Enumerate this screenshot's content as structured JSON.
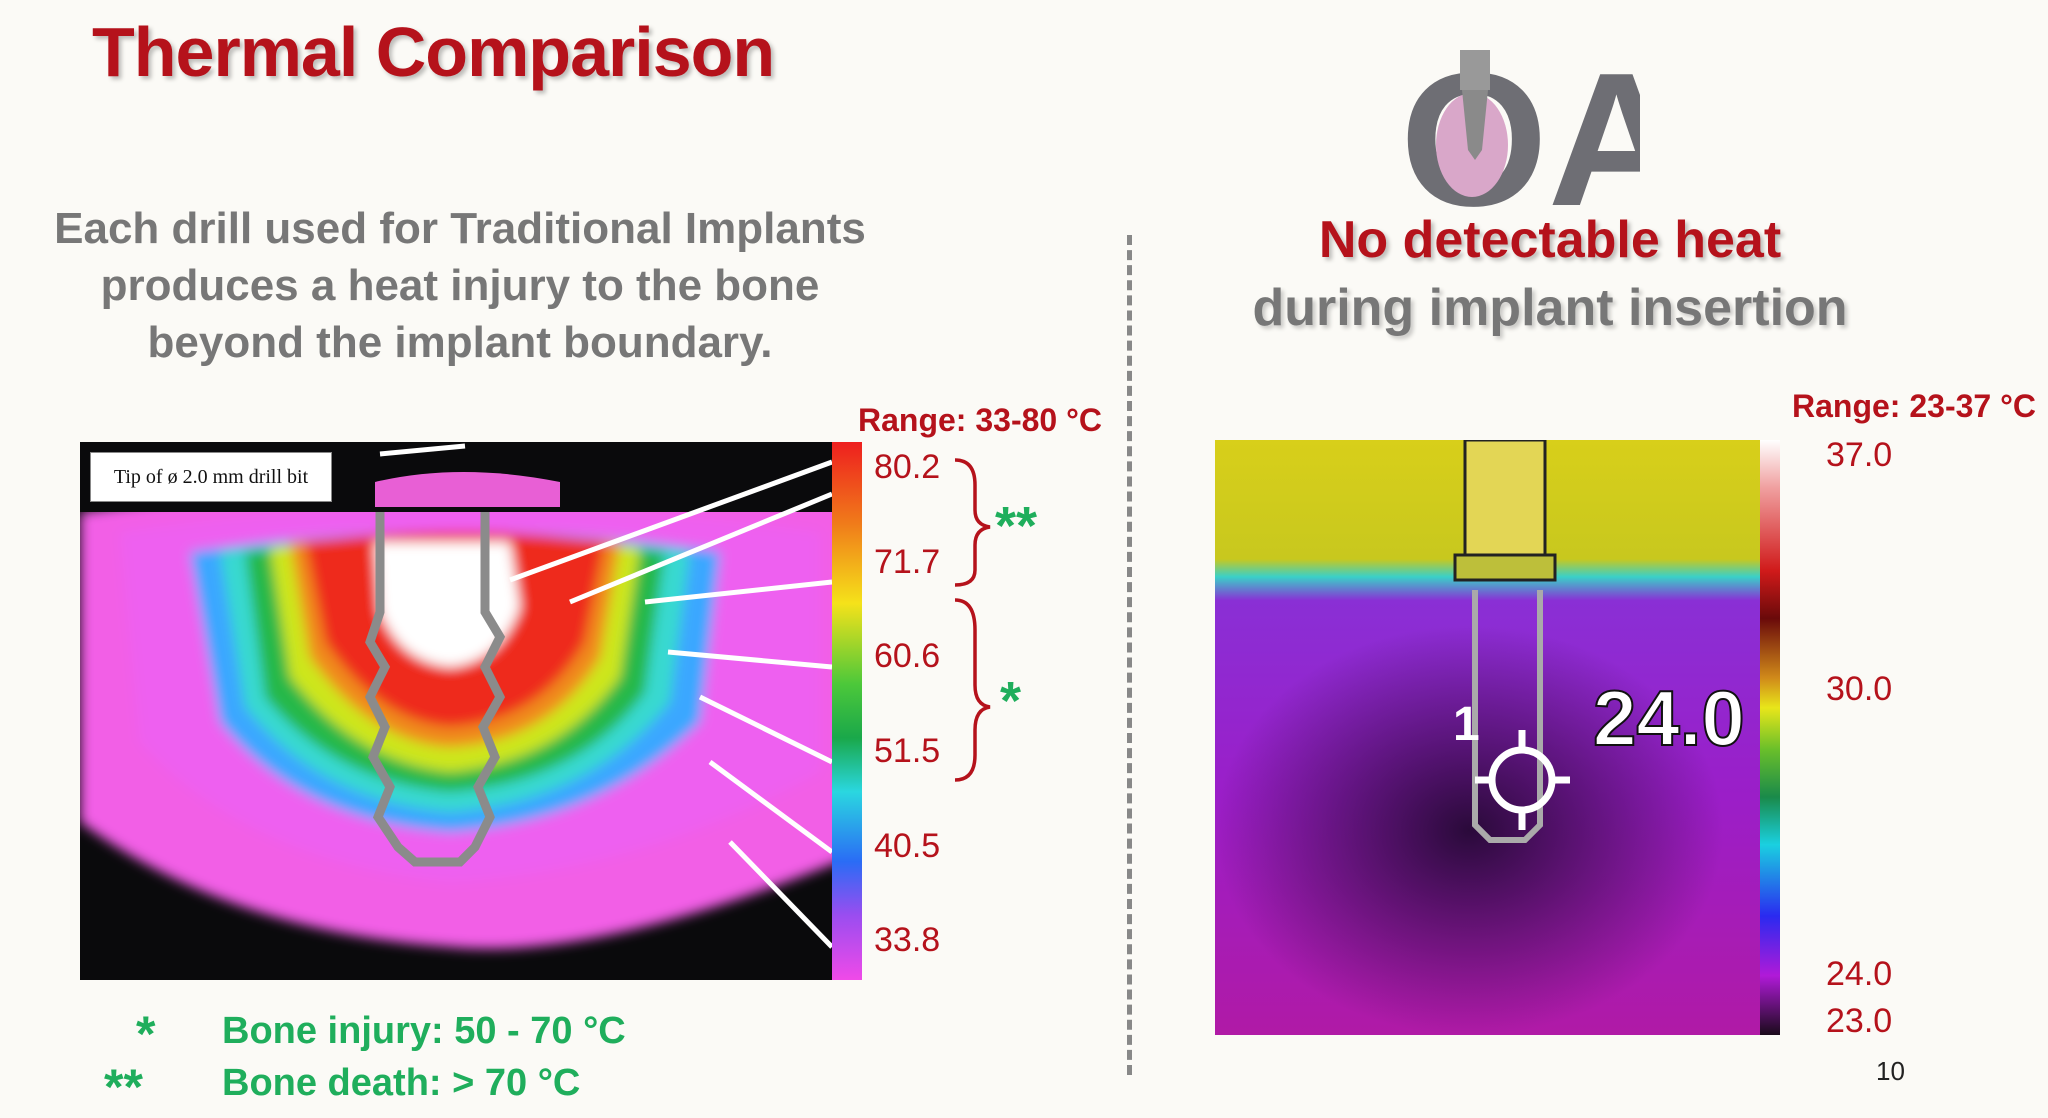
{
  "slide": {
    "title": "Thermal Comparison",
    "page_number": "10"
  },
  "left": {
    "description_lines": [
      "Each drill used for Traditional Implants",
      "produces a heat injury to the bone",
      "beyond the implant boundary."
    ],
    "callout": "Tip of ø 2.0 mm drill bit",
    "range_label": "Range: 33-80 °C",
    "scale_labels": [
      "80.2",
      "71.7",
      "60.6",
      "51.5",
      "40.5",
      "33.8"
    ],
    "brace_markers": [
      "**",
      "*"
    ],
    "legend": [
      {
        "marker": "*",
        "text": "Bone injury: 50 - 70 °C"
      },
      {
        "marker": "**",
        "text": "Bone death: > 70 °C"
      }
    ]
  },
  "right": {
    "logo_text": "OA",
    "headline_1": "No detectable heat",
    "headline_2": "during implant insertion",
    "range_label": "Range: 23-37 °C",
    "scale_labels": [
      "37.0",
      "30.0",
      "24.0",
      "23.0"
    ],
    "readout": "24.0",
    "spot_marker": "1"
  },
  "colors": {
    "title_red": "#b5121b",
    "gray_text": "#777777",
    "legend_green": "#1fae5c"
  }
}
